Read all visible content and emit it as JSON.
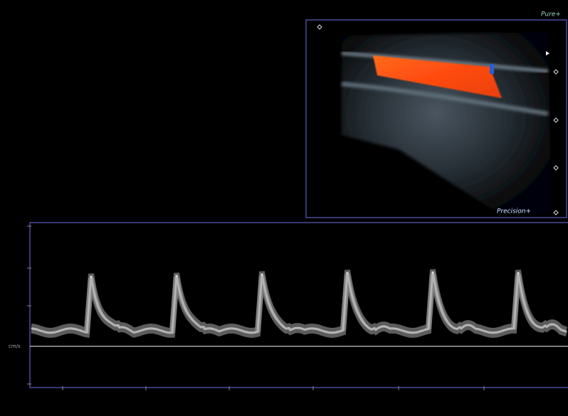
{
  "header": {
    "mode_label": "Pure+"
  },
  "image": {
    "label": "Precision+"
  },
  "doppler": {
    "unit": "cm/s"
  }
}
